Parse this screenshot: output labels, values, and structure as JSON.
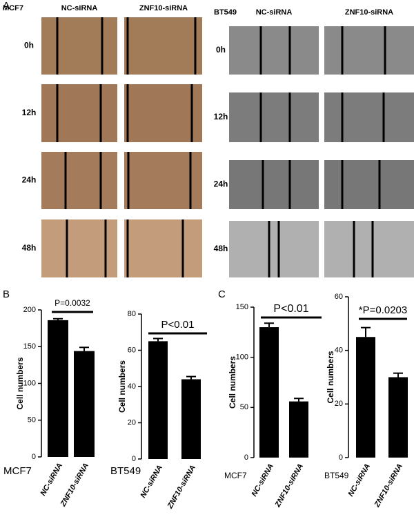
{
  "panels": {
    "a": "A",
    "b": "B",
    "c": "C"
  },
  "panel_a": {
    "groups": [
      {
        "cell_line": "MCF7",
        "conditions": [
          "NC-siRNA",
          "ZNF10-siRNA"
        ],
        "timepoints": [
          "0h",
          "12h",
          "24h",
          "48h"
        ]
      },
      {
        "cell_line": "BT549",
        "conditions": [
          "NC-siRNA",
          "ZNF10-siRNA"
        ],
        "timepoints": [
          "0h",
          "12h",
          "24h",
          "48h"
        ]
      }
    ]
  },
  "chart_data": [
    {
      "type": "bar",
      "group_label": "MCF7",
      "y_label": "Cell numbers",
      "annotation": "P=0.0032",
      "categories": [
        "NC-siRNA",
        "ZNF10-siRNA"
      ],
      "values": [
        186,
        144
      ],
      "errors": [
        2,
        5
      ],
      "color": "#000000",
      "ylim": [
        0,
        200
      ],
      "yticks": [
        0,
        50,
        100,
        150,
        200
      ]
    },
    {
      "type": "bar",
      "group_label": "BT549",
      "y_label": "Cell numbers",
      "annotation": "P<0.01",
      "categories": [
        "NC-siRNA",
        "ZNF10-siRNA"
      ],
      "values": [
        65,
        44
      ],
      "errors": [
        1.5,
        1.5
      ],
      "color": "#000000",
      "ylim": [
        0,
        80
      ],
      "yticks": [
        0,
        20,
        40,
        60,
        80
      ]
    },
    {
      "type": "bar",
      "group_label": "MCF7",
      "y_label": "Cell numbers",
      "annotation": "P<0.01",
      "categories": [
        "NC-siRNA",
        "ZNF10-siRNA"
      ],
      "values": [
        130,
        56
      ],
      "errors": [
        4,
        3
      ],
      "color": "#000000",
      "ylim": [
        0,
        150
      ],
      "yticks": [
        0,
        50,
        100,
        150
      ]
    },
    {
      "type": "bar",
      "group_label": "BT549",
      "y_label": "Cell numbers",
      "annotation": "*P=0.0203",
      "categories": [
        "NC-siRNA",
        "ZNF10-siRNA"
      ],
      "values": [
        45,
        30
      ],
      "errors": [
        3.5,
        1.5
      ],
      "color": "#000000",
      "ylim": [
        0,
        60
      ],
      "yticks": [
        0,
        20,
        40,
        60
      ]
    }
  ]
}
